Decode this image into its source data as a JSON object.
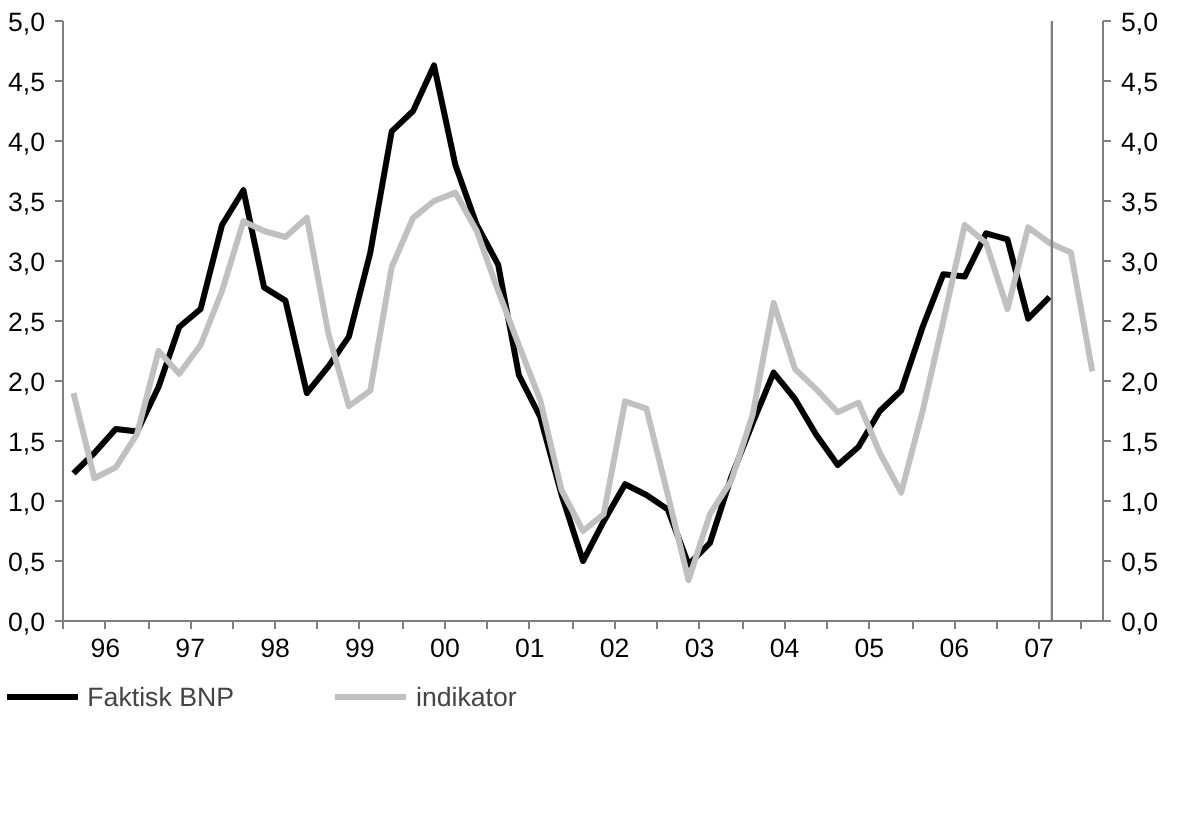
{
  "chart_data": {
    "type": "line",
    "xlim": [
      "1996-01-01",
      "2008-04-01"
    ],
    "ylim": [
      0,
      5
    ],
    "y2lim": [
      0,
      5
    ],
    "xticks": [
      {
        "value": "1996-01-01",
        "label": null
      },
      {
        "value": "1996-07-01",
        "label": "96"
      },
      {
        "value": "1997-01-01",
        "label": null
      },
      {
        "value": "1997-07-01",
        "label": "97"
      },
      {
        "value": "1998-01-01",
        "label": null
      },
      {
        "value": "1998-07-01",
        "label": "98"
      },
      {
        "value": "1999-01-01",
        "label": null
      },
      {
        "value": "1999-07-01",
        "label": "99"
      },
      {
        "value": "2000-01-01",
        "label": null
      },
      {
        "value": "2000-07-01",
        "label": "00"
      },
      {
        "value": "2001-01-01",
        "label": null
      },
      {
        "value": "2001-07-01",
        "label": "01"
      },
      {
        "value": "2002-01-01",
        "label": null
      },
      {
        "value": "2002-07-01",
        "label": "02"
      },
      {
        "value": "2003-01-01",
        "label": null
      },
      {
        "value": "2003-07-01",
        "label": "03"
      },
      {
        "value": "2004-01-01",
        "label": null
      },
      {
        "value": "2004-07-01",
        "label": "04"
      },
      {
        "value": "2005-01-01",
        "label": null
      },
      {
        "value": "2005-07-01",
        "label": "05"
      },
      {
        "value": "2006-01-01",
        "label": null
      },
      {
        "value": "2006-07-01",
        "label": "06"
      },
      {
        "value": "2007-01-01",
        "label": null
      },
      {
        "value": "2007-07-01",
        "label": "07"
      },
      {
        "value": "2008-01-01",
        "label": null
      }
    ],
    "yticks": [
      {
        "value": 0,
        "label": "0,0"
      },
      {
        "value": 0.5,
        "label": "0,5"
      },
      {
        "value": 1,
        "label": "1,0"
      },
      {
        "value": 1.5,
        "label": "1,5"
      },
      {
        "value": 2,
        "label": "2,0"
      },
      {
        "value": 2.5,
        "label": "2,5"
      },
      {
        "value": 3,
        "label": "3,0"
      },
      {
        "value": 3.5,
        "label": "3,5"
      },
      {
        "value": 4,
        "label": "4,0"
      },
      {
        "value": 4.5,
        "label": "4,5"
      },
      {
        "value": 5,
        "label": "5,0"
      }
    ],
    "y2ticks": [
      {
        "value": 0,
        "label": "0,0"
      },
      {
        "value": 0.5,
        "label": "0,5"
      },
      {
        "value": 1,
        "label": "1,0"
      },
      {
        "value": 1.5,
        "label": "1,5"
      },
      {
        "value": 2,
        "label": "2,0"
      },
      {
        "value": 2.5,
        "label": "2,5"
      },
      {
        "value": 3,
        "label": "3,0"
      },
      {
        "value": 3.5,
        "label": "3,5"
      },
      {
        "value": 4,
        "label": "4,0"
      },
      {
        "value": 4.5,
        "label": "4,5"
      },
      {
        "value": 5,
        "label": "5,0"
      }
    ],
    "grid": false,
    "legend": "bottom",
    "line_style": "solid",
    "ref_lines": [
      {
        "axis": "x",
        "value": "2007-08-25",
        "color": "#808080"
      }
    ],
    "series": [
      {
        "name": "Faktisk BNP",
        "color": "#000000",
        "x": [
          "1996-02-15",
          "1996-05-15",
          "1996-08-15",
          "1996-11-15",
          "1997-02-15",
          "1997-05-15",
          "1997-08-15",
          "1997-11-15",
          "1998-02-15",
          "1998-05-15",
          "1998-08-15",
          "1998-11-15",
          "1999-02-15",
          "1999-05-15",
          "1999-08-15",
          "1999-11-15",
          "2000-02-15",
          "2000-05-15",
          "2000-08-15",
          "2000-11-15",
          "2001-02-15",
          "2001-05-15",
          "2001-08-15",
          "2001-11-15",
          "2002-02-15",
          "2002-05-15",
          "2002-08-15",
          "2002-11-15",
          "2003-02-15",
          "2003-05-15",
          "2003-08-15",
          "2003-11-15",
          "2004-02-15",
          "2004-05-15",
          "2004-08-15",
          "2004-11-15",
          "2005-02-15",
          "2005-05-15",
          "2005-08-15",
          "2005-11-15",
          "2006-02-15",
          "2006-05-15",
          "2006-08-15",
          "2006-11-15",
          "2007-02-15",
          "2007-05-15",
          "2007-08-15"
        ],
        "values": [
          1.23,
          1.4,
          1.6,
          1.58,
          1.95,
          2.45,
          2.6,
          3.3,
          3.59,
          2.78,
          2.67,
          1.9,
          2.12,
          2.37,
          3.07,
          4.08,
          4.25,
          4.63,
          3.8,
          3.3,
          2.97,
          2.05,
          1.7,
          1.05,
          0.5,
          0.83,
          1.14,
          1.05,
          0.93,
          0.47,
          0.65,
          1.2,
          1.65,
          2.07,
          1.85,
          1.55,
          1.3,
          1.45,
          1.75,
          1.92,
          2.45,
          2.89,
          2.87,
          3.23,
          3.18,
          2.52,
          2.7
        ]
      },
      {
        "name": "indikator",
        "color": "#c0c0c0",
        "x": [
          "1996-02-15",
          "1996-05-15",
          "1996-08-15",
          "1996-11-15",
          "1997-02-15",
          "1997-05-15",
          "1997-08-15",
          "1997-11-15",
          "1998-02-15",
          "1998-05-15",
          "1998-08-15",
          "1998-11-15",
          "1999-02-15",
          "1999-05-15",
          "1999-08-15",
          "1999-11-15",
          "2000-02-15",
          "2000-05-15",
          "2000-08-15",
          "2000-11-15",
          "2001-02-15",
          "2001-05-15",
          "2001-08-15",
          "2001-11-15",
          "2002-02-15",
          "2002-05-15",
          "2002-08-15",
          "2002-11-15",
          "2003-02-15",
          "2003-05-15",
          "2003-08-15",
          "2003-11-15",
          "2004-02-15",
          "2004-05-15",
          "2004-08-15",
          "2004-11-15",
          "2005-02-15",
          "2005-05-15",
          "2005-08-15",
          "2005-11-15",
          "2006-02-15",
          "2006-05-15",
          "2006-08-15",
          "2006-11-15",
          "2007-02-15",
          "2007-05-15",
          "2007-08-15",
          "2007-11-15",
          "2008-02-15"
        ],
        "values": [
          1.9,
          1.19,
          1.28,
          1.56,
          2.25,
          2.06,
          2.3,
          2.75,
          3.33,
          3.25,
          3.2,
          3.36,
          2.4,
          1.79,
          1.92,
          2.95,
          3.36,
          3.5,
          3.57,
          3.25,
          2.75,
          2.3,
          1.84,
          1.09,
          0.75,
          0.89,
          1.83,
          1.77,
          1.05,
          0.34,
          0.89,
          1.17,
          1.72,
          2.65,
          2.1,
          1.93,
          1.74,
          1.82,
          1.4,
          1.07,
          1.75,
          2.5,
          3.3,
          3.15,
          2.6,
          3.28,
          3.15,
          3.07,
          2.08
        ]
      }
    ]
  }
}
